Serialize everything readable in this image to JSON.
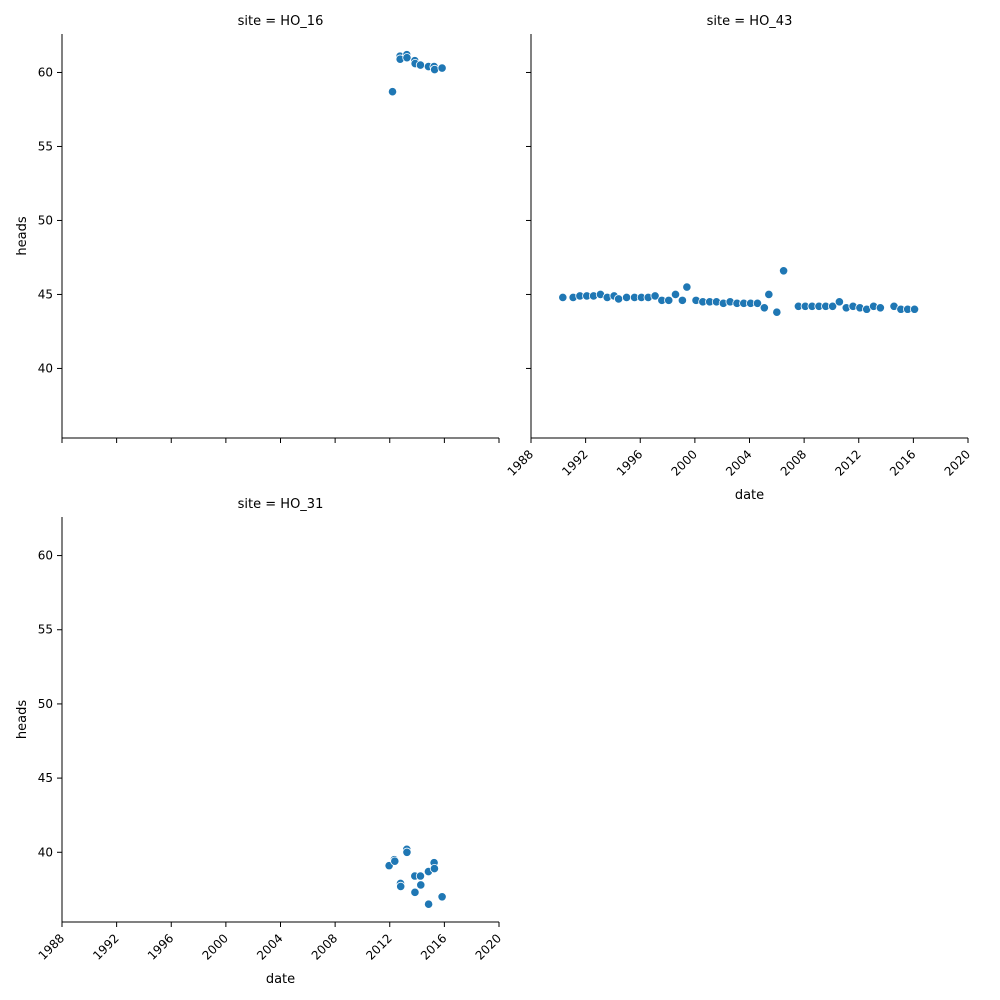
{
  "chart_data": [
    {
      "type": "scatter",
      "title": "site = HO_16",
      "xlabel": "",
      "ylabel": "heads",
      "xlim": [
        "1988-01-01",
        "2020-01-01"
      ],
      "ylim": [
        35.3,
        62.6
      ],
      "x_ticks": [
        "1988",
        "1992",
        "1996",
        "2000",
        "2004",
        "2008",
        "2012",
        "2016",
        "2020"
      ],
      "y_ticks": [
        40,
        45,
        50,
        55,
        60
      ],
      "show_x_tick_labels": false,
      "show_y_tick_labels": true,
      "color": "#1f77b4",
      "points": [
        {
          "x": "2012-03-15",
          "y": 58.7
        },
        {
          "x": "2012-10-01",
          "y": 61.1
        },
        {
          "x": "2012-10-05",
          "y": 60.9
        },
        {
          "x": "2013-04-01",
          "y": 61.2
        },
        {
          "x": "2013-04-05",
          "y": 61.0
        },
        {
          "x": "2013-11-01",
          "y": 60.8
        },
        {
          "x": "2013-11-10",
          "y": 60.6
        },
        {
          "x": "2014-04-01",
          "y": 60.5
        },
        {
          "x": "2014-11-01",
          "y": 60.4
        },
        {
          "x": "2015-04-01",
          "y": 60.4
        },
        {
          "x": "2015-04-15",
          "y": 60.2
        },
        {
          "x": "2015-11-01",
          "y": 60.3
        }
      ]
    },
    {
      "type": "scatter",
      "title": "site = HO_43",
      "xlabel": "date",
      "ylabel": "",
      "xlim": [
        "1988-01-01",
        "2020-01-01"
      ],
      "ylim": [
        35.3,
        62.6
      ],
      "x_ticks": [
        "1988",
        "1992",
        "1996",
        "2000",
        "2004",
        "2008",
        "2012",
        "2016",
        "2020"
      ],
      "y_ticks": [
        40,
        45,
        50,
        55,
        60
      ],
      "show_x_tick_labels": true,
      "show_y_tick_labels": false,
      "color": "#1f77b4",
      "points": [
        {
          "x": "1990-05-01",
          "y": 44.8
        },
        {
          "x": "1991-02-01",
          "y": 44.8
        },
        {
          "x": "1991-08-01",
          "y": 44.9
        },
        {
          "x": "1992-02-01",
          "y": 44.9
        },
        {
          "x": "1992-08-01",
          "y": 44.9
        },
        {
          "x": "1993-02-01",
          "y": 45.0
        },
        {
          "x": "1993-08-01",
          "y": 44.8
        },
        {
          "x": "1994-02-01",
          "y": 44.9
        },
        {
          "x": "1994-06-01",
          "y": 44.7
        },
        {
          "x": "1995-01-01",
          "y": 44.8
        },
        {
          "x": "1995-08-01",
          "y": 44.8
        },
        {
          "x": "1996-02-01",
          "y": 44.8
        },
        {
          "x": "1996-08-01",
          "y": 44.8
        },
        {
          "x": "1997-02-01",
          "y": 44.9
        },
        {
          "x": "1997-08-01",
          "y": 44.6
        },
        {
          "x": "1998-02-01",
          "y": 44.6
        },
        {
          "x": "1998-08-01",
          "y": 45.0
        },
        {
          "x": "1999-02-01",
          "y": 44.6
        },
        {
          "x": "1999-06-01",
          "y": 45.5
        },
        {
          "x": "2000-02-01",
          "y": 44.6
        },
        {
          "x": "2000-08-01",
          "y": 44.5
        },
        {
          "x": "2001-02-01",
          "y": 44.5
        },
        {
          "x": "2001-08-01",
          "y": 44.5
        },
        {
          "x": "2002-02-01",
          "y": 44.4
        },
        {
          "x": "2002-08-01",
          "y": 44.5
        },
        {
          "x": "2003-02-01",
          "y": 44.4
        },
        {
          "x": "2003-08-01",
          "y": 44.4
        },
        {
          "x": "2004-02-01",
          "y": 44.4
        },
        {
          "x": "2004-08-01",
          "y": 44.4
        },
        {
          "x": "2005-02-01",
          "y": 44.1
        },
        {
          "x": "2005-06-01",
          "y": 45.0
        },
        {
          "x": "2006-01-01",
          "y": 43.8
        },
        {
          "x": "2006-07-01",
          "y": 46.6
        },
        {
          "x": "2007-08-01",
          "y": 44.2
        },
        {
          "x": "2008-02-01",
          "y": 44.2
        },
        {
          "x": "2008-08-01",
          "y": 44.2
        },
        {
          "x": "2009-02-01",
          "y": 44.2
        },
        {
          "x": "2009-08-01",
          "y": 44.2
        },
        {
          "x": "2010-02-01",
          "y": 44.2
        },
        {
          "x": "2010-08-01",
          "y": 44.5
        },
        {
          "x": "2011-02-01",
          "y": 44.1
        },
        {
          "x": "2011-08-01",
          "y": 44.2
        },
        {
          "x": "2012-02-01",
          "y": 44.1
        },
        {
          "x": "2012-08-01",
          "y": 44.0
        },
        {
          "x": "2013-02-01",
          "y": 44.2
        },
        {
          "x": "2013-08-01",
          "y": 44.1
        },
        {
          "x": "2014-08-01",
          "y": 44.2
        },
        {
          "x": "2015-02-01",
          "y": 44.0
        },
        {
          "x": "2015-08-01",
          "y": 44.0
        },
        {
          "x": "2016-02-01",
          "y": 44.0
        }
      ]
    },
    {
      "type": "scatter",
      "title": "site = HO_31",
      "xlabel": "date",
      "ylabel": "heads",
      "xlim": [
        "1988-01-01",
        "2020-01-01"
      ],
      "ylim": [
        35.3,
        62.6
      ],
      "x_ticks": [
        "1988",
        "1992",
        "1996",
        "2000",
        "2004",
        "2008",
        "2012",
        "2016",
        "2020"
      ],
      "y_ticks": [
        40,
        45,
        50,
        55,
        60
      ],
      "show_x_tick_labels": true,
      "show_y_tick_labels": true,
      "color": "#1f77b4",
      "points": [
        {
          "x": "2011-12-15",
          "y": 39.1
        },
        {
          "x": "2012-05-01",
          "y": 39.5
        },
        {
          "x": "2012-05-15",
          "y": 39.4
        },
        {
          "x": "2012-10-15",
          "y": 37.9
        },
        {
          "x": "2012-10-20",
          "y": 37.7
        },
        {
          "x": "2013-04-01",
          "y": 40.2
        },
        {
          "x": "2013-04-05",
          "y": 40.0
        },
        {
          "x": "2013-11-01",
          "y": 38.4
        },
        {
          "x": "2013-11-05",
          "y": 37.3
        },
        {
          "x": "2014-04-01",
          "y": 38.4
        },
        {
          "x": "2014-04-10",
          "y": 37.8
        },
        {
          "x": "2014-11-01",
          "y": 38.7
        },
        {
          "x": "2014-11-05",
          "y": 36.5
        },
        {
          "x": "2015-04-01",
          "y": 39.3
        },
        {
          "x": "2015-04-10",
          "y": 38.9
        },
        {
          "x": "2015-11-01",
          "y": 37.0
        }
      ]
    }
  ]
}
